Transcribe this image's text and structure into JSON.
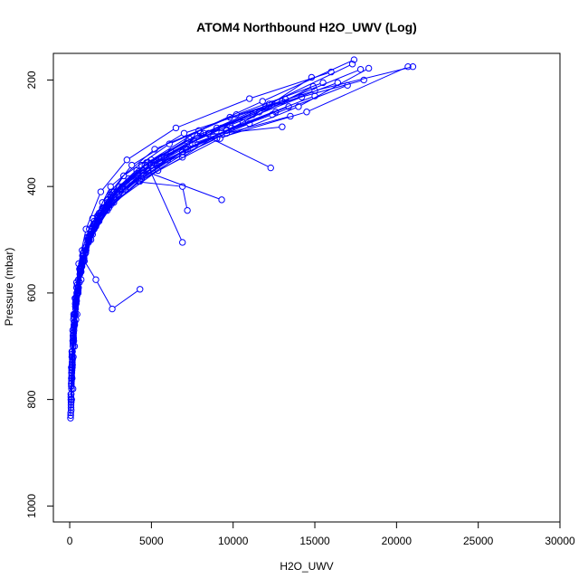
{
  "chart_data": {
    "type": "line",
    "title": "ATOM4 Northbound H2O_UWV (Log)",
    "xlabel": "H2O_UWV",
    "ylabel": "Pressure (mbar)",
    "xlim": [
      -1000,
      30000
    ],
    "ylim": [
      1030,
      150
    ],
    "y_reversed": true,
    "x_ticks": [
      0,
      5000,
      10000,
      15000,
      20000,
      25000,
      30000
    ],
    "y_ticks": [
      200,
      400,
      600,
      800,
      1000
    ],
    "grid": false,
    "legend": "none",
    "marker": "open-circle",
    "color": "#0000ff",
    "series": [
      {
        "x": [
          200,
          300,
          450,
          700,
          1200,
          2500,
          5200,
          9800,
          15000,
          21000
        ],
        "y": [
          780,
          700,
          640,
          560,
          480,
          400,
          330,
          270,
          220,
          175
        ]
      },
      {
        "x": [
          150,
          250,
          400,
          650,
          1100,
          2000,
          3800,
          7000,
          12000,
          18000
        ],
        "y": [
          760,
          690,
          620,
          560,
          500,
          430,
          360,
          300,
          250,
          200
        ]
      },
      {
        "x": [
          100,
          180,
          320,
          550,
          1000,
          1900,
          3500,
          6500,
          11000,
          16000
        ],
        "y": [
          740,
          670,
          610,
          545,
          480,
          410,
          350,
          290,
          235,
          185
        ]
      },
      {
        "x": [
          120,
          220,
          380,
          700,
          1300,
          2600,
          4800,
          9000,
          14500,
          20700
        ],
        "y": [
          800,
          720,
          650,
          575,
          500,
          430,
          370,
          310,
          260,
          175
        ]
      },
      {
        "x": [
          90,
          160,
          300,
          520,
          950,
          1800,
          3300,
          6100,
          10200,
          15500
        ],
        "y": [
          820,
          740,
          660,
          590,
          520,
          450,
          380,
          320,
          265,
          205
        ]
      },
      {
        "x": [
          200,
          350,
          600,
          1000,
          1700,
          3000,
          5600,
          9300,
          13000,
          17800
        ],
        "y": [
          700,
          640,
          580,
          520,
          460,
          400,
          345,
          290,
          240,
          180
        ]
      },
      {
        "x": [
          80,
          150,
          260,
          430,
          800,
          1500,
          2800,
          5000,
          8500,
          12400
        ],
        "y": [
          810,
          730,
          660,
          600,
          540,
          480,
          420,
          360,
          300,
          245
        ]
      },
      {
        "x": [
          110,
          210,
          360,
          620,
          1150,
          2200,
          4300,
          6900,
          9600,
          13500
        ],
        "y": [
          780,
          700,
          630,
          565,
          505,
          445,
          390,
          340,
          300,
          268
        ]
      },
      {
        "x": [
          70,
          130,
          240,
          420,
          760,
          1400,
          2700,
          4600,
          7300,
          11200
        ],
        "y": [
          790,
          710,
          640,
          580,
          520,
          460,
          410,
          360,
          310,
          265
        ]
      },
      {
        "x": [
          130,
          240,
          420,
          750,
          1400,
          2700,
          5400,
          9200,
          14000,
          18300
        ],
        "y": [
          760,
          685,
          615,
          550,
          490,
          430,
          370,
          310,
          250,
          178
        ]
      },
      {
        "x": [
          60,
          110,
          200,
          380,
          700,
          1300,
          2500,
          4300,
          6900,
          9300
        ],
        "y": [
          830,
          750,
          680,
          610,
          550,
          490,
          435,
          390,
          345,
          298
        ]
      },
      {
        "x": [
          150,
          280,
          480,
          820,
          1500,
          2900,
          5200,
          8200,
          12200,
          17300
        ],
        "y": [
          720,
          655,
          595,
          535,
          475,
          415,
          355,
          300,
          245,
          170
        ]
      },
      {
        "x": [
          100,
          190,
          340,
          600,
          1080,
          2000,
          3600,
          6200,
          9800,
          14200
        ],
        "y": [
          770,
          690,
          620,
          555,
          495,
          440,
          385,
          335,
          285,
          232
        ]
      },
      {
        "x": [
          90,
          170,
          310,
          540,
          980,
          1800,
          3400,
          6000,
          9900,
          15000
        ],
        "y": [
          805,
          725,
          655,
          590,
          525,
          465,
          405,
          350,
          290,
          230
        ]
      },
      {
        "x": [
          140,
          260,
          440,
          760,
          1300,
          2300,
          4100,
          7200,
          11600,
          16400
        ],
        "y": [
          745,
          670,
          605,
          545,
          485,
          425,
          370,
          315,
          260,
          205
        ]
      },
      {
        "x": [
          80,
          140,
          250,
          460,
          840,
          1600,
          3000,
          5500,
          9600,
          14900
        ],
        "y": [
          815,
          735,
          665,
          600,
          540,
          475,
          415,
          355,
          295,
          212
        ]
      },
      {
        "x": [
          170,
          300,
          520,
          880,
          1600,
          2900,
          5000,
          7900,
          11800,
          17400
        ],
        "y": [
          735,
          660,
          595,
          535,
          470,
          410,
          350,
          295,
          240,
          162
        ]
      },
      {
        "x": [
          60,
          120,
          220,
          400,
          720,
          1300,
          2400,
          4500,
          7700,
          12600
        ],
        "y": [
          825,
          745,
          675,
          610,
          545,
          485,
          430,
          375,
          320,
          260
        ]
      },
      {
        "x": [
          120,
          230,
          400,
          700,
          1250,
          2300,
          4200,
          7500,
          12400,
          17000
        ],
        "y": [
          755,
          680,
          610,
          550,
          490,
          430,
          375,
          320,
          265,
          210
        ]
      },
      {
        "x": [
          100,
          200,
          350,
          650,
          1200,
          2400,
          4400,
          7100,
          10600,
          14800
        ],
        "y": [
          775,
          695,
          625,
          560,
          500,
          440,
          385,
          330,
          280,
          195
        ]
      },
      {
        "x": [
          70,
          130,
          230,
          420,
          780,
          1500,
          2900,
          5300,
          8800,
          13400
        ],
        "y": [
          800,
          720,
          650,
          590,
          530,
          470,
          415,
          360,
          305,
          250
        ]
      },
      {
        "x": [
          160,
          290,
          500,
          850,
          1500,
          2700,
          4800,
          8000,
          12300
        ],
        "y": [
          730,
          655,
          590,
          530,
          470,
          410,
          355,
          300,
          365
        ]
      },
      {
        "x": [
          90,
          170,
          300,
          530,
          950,
          1700,
          3200,
          5800,
          9000,
          13200
        ],
        "y": [
          790,
          710,
          640,
          575,
          515,
          455,
          400,
          345,
          290,
          236
        ]
      },
      {
        "x": [
          110,
          210,
          370,
          640,
          1150,
          2100,
          3800,
          6900,
          7200
        ],
        "y": [
          765,
          685,
          615,
          555,
          495,
          440,
          390,
          400,
          445
        ]
      },
      {
        "x": [
          130,
          240,
          430,
          760,
          1350,
          2500,
          4700,
          6900
        ],
        "y": [
          750,
          675,
          605,
          545,
          480,
          420,
          355,
          505
        ]
      },
      {
        "x": [
          80,
          160,
          290,
          520,
          900,
          1600,
          2600,
          4300
        ],
        "y": [
          805,
          725,
          660,
          600,
          540,
          575,
          630,
          593
        ]
      },
      {
        "x": [
          50,
          100,
          190,
          350,
          650,
          1200,
          2300,
          4200,
          6900
        ],
        "y": [
          835,
          760,
          690,
          625,
          560,
          500,
          445,
          390,
          335
        ]
      },
      {
        "x": [
          100,
          200,
          380,
          700,
          1300,
          2400,
          4200,
          7200,
          11000
        ],
        "y": [
          770,
          690,
          615,
          550,
          490,
          430,
          380,
          330,
          282
        ]
      },
      {
        "x": [
          140,
          260,
          460,
          800,
          1400,
          2500,
          4400,
          7800,
          13000
        ],
        "y": [
          740,
          665,
          600,
          540,
          475,
          415,
          360,
          305,
          288
        ]
      },
      {
        "x": [
          70,
          140,
          250,
          450,
          820,
          1500,
          2600,
          4500,
          9300
        ],
        "y": [
          795,
          715,
          645,
          585,
          525,
          465,
          410,
          370,
          425
        ]
      }
    ]
  }
}
